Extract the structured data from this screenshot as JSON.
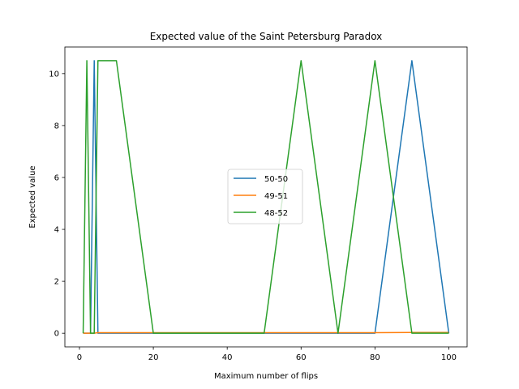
{
  "chart_data": {
    "type": "line",
    "title": "Expected value of the Saint Petersburg Paradox",
    "xlabel": "Maximum number of flips",
    "ylabel": "Expected value",
    "xlim": [
      -3.95,
      104.95
    ],
    "ylim": [
      -0.525,
      11.025
    ],
    "xticks": [
      0,
      20,
      40,
      60,
      80,
      100
    ],
    "yticks": [
      0,
      2,
      4,
      6,
      8,
      10
    ],
    "grid": false,
    "legend_position": "center",
    "series": [
      {
        "name": "50-50",
        "color": "#1f77b4",
        "x": [
          1,
          2,
          3,
          4,
          5,
          6,
          10,
          20,
          30,
          40,
          50,
          60,
          70,
          80,
          90,
          100
        ],
        "y": [
          0,
          0,
          0,
          10.5,
          0,
          0,
          0,
          0,
          0,
          0,
          0,
          0,
          0,
          0,
          10.5,
          0
        ]
      },
      {
        "name": "49-51",
        "color": "#ff7f0e",
        "x": [
          1,
          2,
          3,
          4,
          5,
          10,
          20,
          30,
          40,
          50,
          60,
          70,
          80,
          90,
          100
        ],
        "y": [
          0,
          0,
          0,
          0,
          0.02,
          0.02,
          0.02,
          0.02,
          0.02,
          0.02,
          0.02,
          0.02,
          0.02,
          0.03,
          0.03
        ]
      },
      {
        "name": "48-52",
        "color": "#2ca02c",
        "x": [
          1,
          2,
          3,
          4,
          5,
          10,
          20,
          30,
          40,
          50,
          60,
          70,
          80,
          90,
          100
        ],
        "y": [
          0,
          10.5,
          0,
          0,
          10.5,
          10.5,
          0,
          0,
          0,
          0,
          10.5,
          0,
          10.5,
          0,
          0
        ]
      }
    ]
  }
}
